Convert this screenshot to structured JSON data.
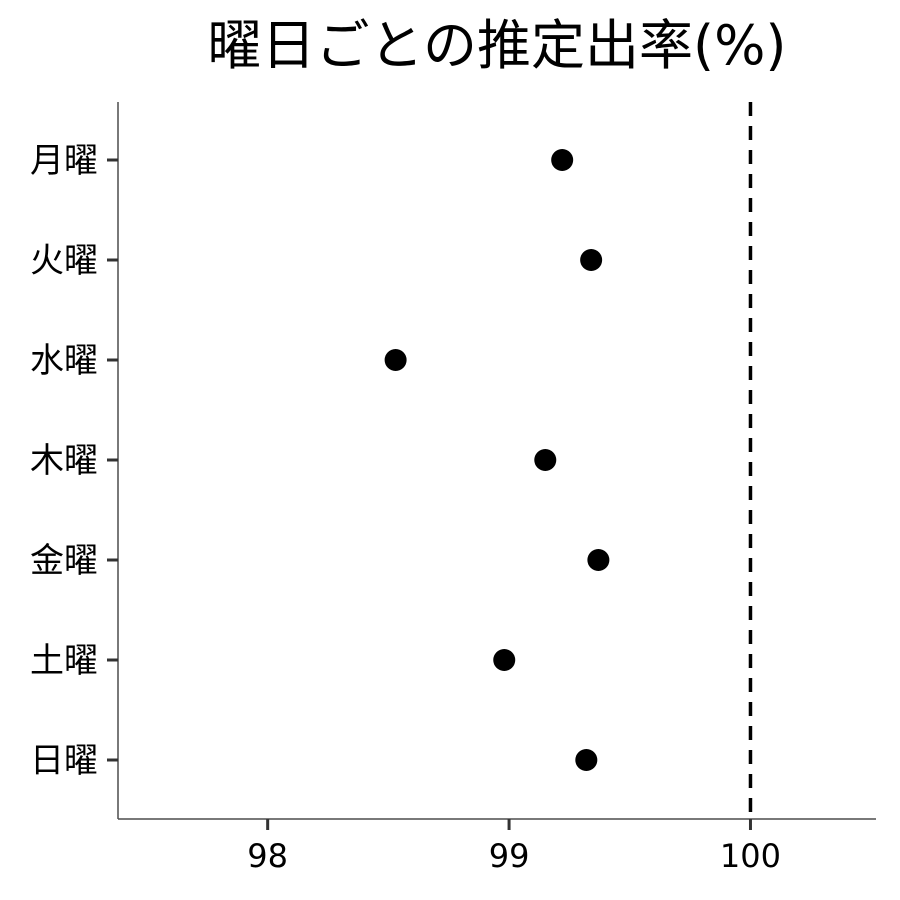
{
  "chart_data": {
    "type": "scatter",
    "title": "曜日ごとの推定出率(%)",
    "xlabel": "",
    "ylabel": "",
    "categories": [
      "月曜",
      "火曜",
      "水曜",
      "木曜",
      "金曜",
      "土曜",
      "日曜"
    ],
    "values": [
      99.22,
      99.34,
      98.53,
      99.15,
      99.37,
      98.98,
      99.32
    ],
    "xlim": [
      97.38,
      100.52
    ],
    "x_ticks": [
      "98",
      "99",
      "100"
    ],
    "reference_line": {
      "x": 100,
      "style": "dashed",
      "color": "#000000"
    },
    "grid": false,
    "point_color": "#000000"
  }
}
